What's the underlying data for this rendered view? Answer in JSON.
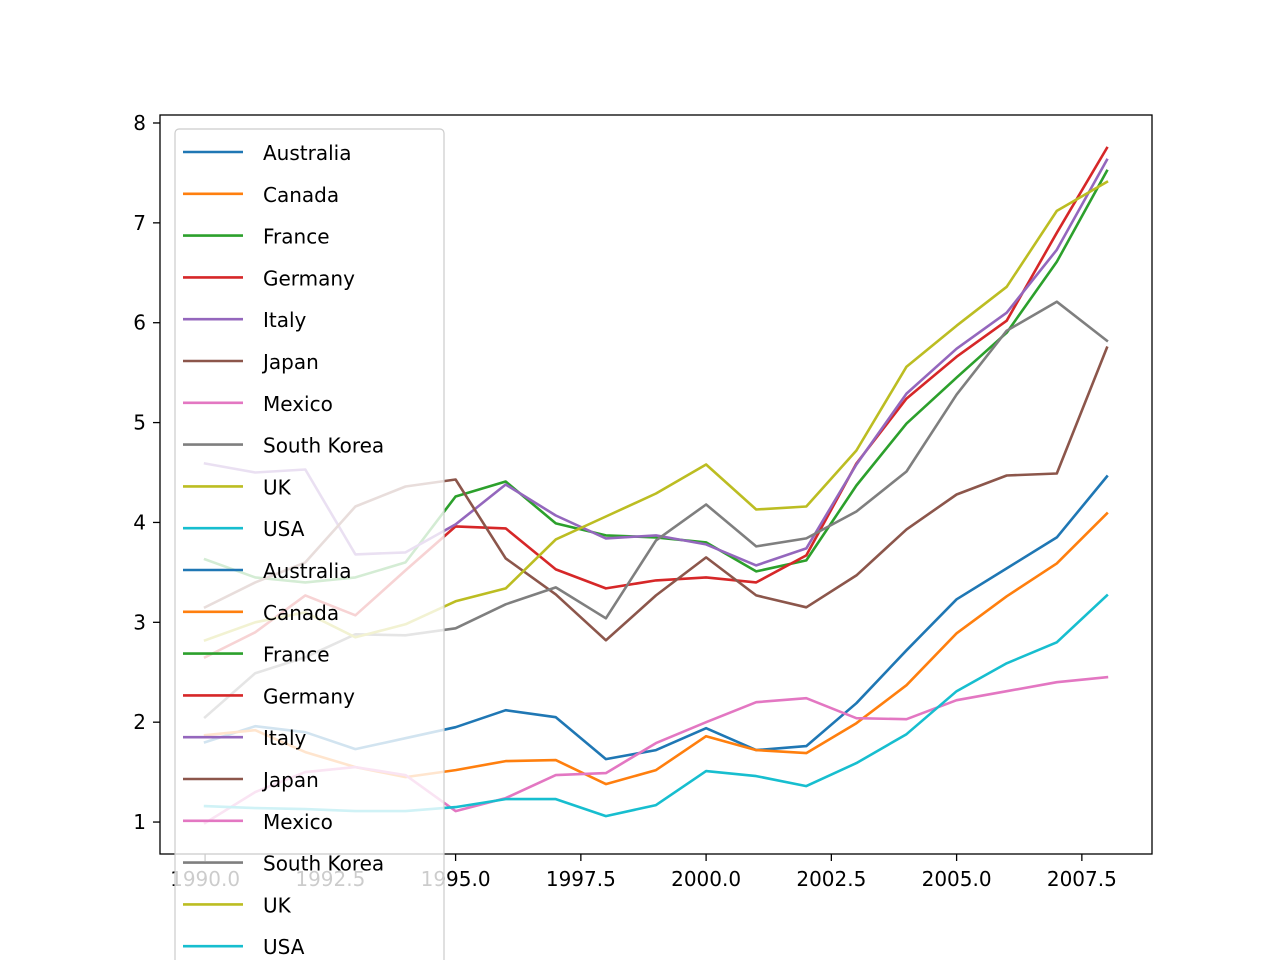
{
  "chart_data": {
    "type": "line",
    "title": "",
    "xlabel": "",
    "ylabel": "",
    "xlim": [
      1989.1,
      2008.9
    ],
    "ylim": [
      0.68,
      8.08
    ],
    "x_ticks": [
      "1990.0",
      "1992.5",
      "1995.0",
      "1997.5",
      "2000.0",
      "2002.5",
      "2005.0",
      "2007.5"
    ],
    "x_tick_values": [
      1990.0,
      1992.5,
      1995.0,
      1997.5,
      2000.0,
      2002.5,
      2005.0,
      2007.5
    ],
    "y_ticks": [
      "1",
      "2",
      "3",
      "4",
      "5",
      "6",
      "7",
      "8"
    ],
    "y_tick_values": [
      1,
      2,
      3,
      4,
      5,
      6,
      7,
      8
    ],
    "grid": false,
    "legend_position": "upper-left",
    "x": [
      1990,
      1991,
      1992,
      1993,
      1994,
      1995,
      1996,
      1997,
      1998,
      1999,
      2000,
      2001,
      2002,
      2003,
      2004,
      2005,
      2006,
      2007,
      2008
    ],
    "series": [
      {
        "name": "Australia",
        "color": "#1f77b4",
        "values": [
          1.8,
          1.96,
          1.9,
          1.73,
          1.84,
          1.95,
          2.12,
          2.05,
          1.63,
          1.72,
          1.94,
          1.72,
          1.76,
          2.19,
          2.72,
          3.23,
          3.54,
          3.85,
          4.46
        ]
      },
      {
        "name": "Canada",
        "color": "#ff7f0e",
        "values": [
          1.87,
          1.92,
          1.7,
          1.55,
          1.45,
          1.52,
          1.61,
          1.62,
          1.38,
          1.52,
          1.86,
          1.72,
          1.69,
          1.99,
          2.37,
          2.89,
          3.26,
          3.59,
          4.09
        ]
      },
      {
        "name": "France",
        "color": "#2ca02c",
        "values": [
          3.63,
          3.45,
          3.4,
          3.45,
          3.6,
          4.26,
          4.41,
          3.99,
          3.87,
          3.85,
          3.8,
          3.51,
          3.62,
          4.37,
          4.99,
          5.45,
          5.9,
          6.61,
          7.52
        ]
      },
      {
        "name": "Germany",
        "color": "#d62728",
        "values": [
          2.65,
          2.9,
          3.27,
          3.07,
          3.52,
          3.96,
          3.94,
          3.53,
          3.34,
          3.42,
          3.45,
          3.4,
          3.67,
          4.59,
          5.24,
          5.66,
          6.02,
          6.9,
          7.75
        ]
      },
      {
        "name": "Italy",
        "color": "#9467bd",
        "values": [
          4.59,
          4.5,
          4.53,
          3.68,
          3.7,
          3.98,
          4.38,
          4.07,
          3.84,
          3.87,
          3.78,
          3.57,
          3.74,
          4.58,
          5.29,
          5.74,
          6.1,
          6.73,
          7.63
        ]
      },
      {
        "name": "Japan",
        "color": "#8c564b",
        "values": [
          3.15,
          3.4,
          3.6,
          4.16,
          4.36,
          4.43,
          3.64,
          3.28,
          2.82,
          3.27,
          3.65,
          3.27,
          3.15,
          3.47,
          3.93,
          4.28,
          4.47,
          4.49,
          5.75
        ]
      },
      {
        "name": "Mexico",
        "color": "#e377c2",
        "values": [
          0.99,
          1.3,
          1.5,
          1.55,
          1.47,
          1.11,
          1.24,
          1.47,
          1.49,
          1.79,
          2.0,
          2.2,
          2.24,
          2.04,
          2.03,
          2.22,
          2.31,
          2.4,
          2.45
        ]
      },
      {
        "name": "South Korea",
        "color": "#7f7f7f",
        "values": [
          2.05,
          2.49,
          2.65,
          2.88,
          2.87,
          2.94,
          3.18,
          3.35,
          3.04,
          3.82,
          4.18,
          3.76,
          3.84,
          4.11,
          4.51,
          5.28,
          5.92,
          6.21,
          5.82
        ]
      },
      {
        "name": "UK",
        "color": "#bcbd22",
        "values": [
          2.82,
          3.0,
          3.1,
          2.85,
          2.98,
          3.21,
          3.34,
          3.83,
          4.06,
          4.29,
          4.58,
          4.13,
          4.16,
          4.72,
          5.56,
          5.97,
          6.36,
          7.12,
          7.41
        ]
      },
      {
        "name": "USA",
        "color": "#17becf",
        "values": [
          1.16,
          1.14,
          1.13,
          1.11,
          1.11,
          1.15,
          1.23,
          1.23,
          1.06,
          1.17,
          1.51,
          1.46,
          1.36,
          1.59,
          1.88,
          2.31,
          2.59,
          2.8,
          3.27
        ]
      }
    ],
    "legend_entries": [
      "Australia",
      "Canada",
      "France",
      "Germany",
      "Italy",
      "Japan",
      "Mexico",
      "South Korea",
      "UK",
      "USA",
      "Australia",
      "Canada",
      "France",
      "Germany",
      "Italy",
      "Japan",
      "Mexico",
      "South Korea",
      "UK",
      "USA"
    ]
  }
}
